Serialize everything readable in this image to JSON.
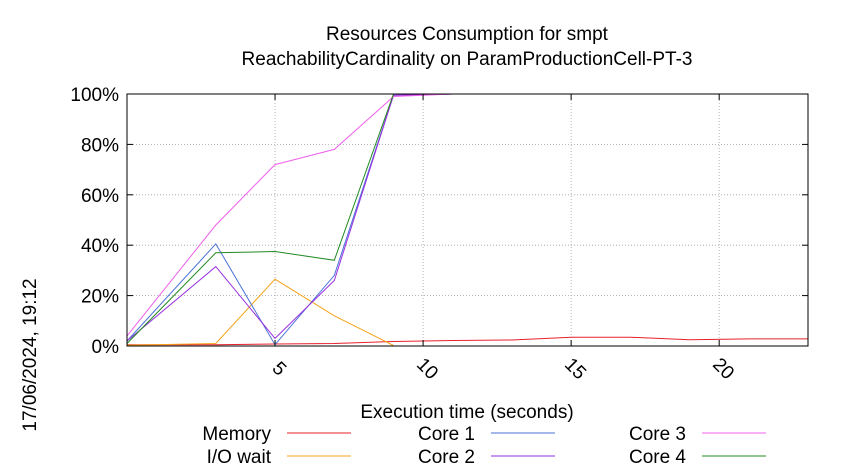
{
  "chart_data": {
    "type": "line",
    "title_line1": "Resources Consumption for smpt",
    "title_line2": "ReachabilityCardinality on ParamProductionCell-PT-3",
    "xlabel": "Execution time (seconds)",
    "ylabel": "",
    "side_label": "17/06/2024, 19:12",
    "xlim": [
      0,
      23
    ],
    "ylim": [
      0,
      100
    ],
    "x_ticks": [
      5,
      10,
      15,
      20
    ],
    "y_ticks": [
      0,
      20,
      40,
      60,
      80,
      100
    ],
    "y_tick_suffix": "%",
    "grid": true,
    "legend_placement": "bottom",
    "series": [
      {
        "name": "Memory",
        "color": "#e8202a",
        "x": [
          0,
          3,
          5,
          7,
          9,
          11,
          13,
          15,
          17,
          19,
          21,
          23
        ],
        "y": [
          0.5,
          0.5,
          0.8,
          1.0,
          1.8,
          2.2,
          2.4,
          3.5,
          3.5,
          2.5,
          2.8,
          2.8
        ]
      },
      {
        "name": "I/O wait",
        "color": "#f4a41c",
        "x": [
          0,
          3,
          5,
          7,
          9
        ],
        "y": [
          0.3,
          1.0,
          26.5,
          12.0,
          0.2
        ]
      },
      {
        "name": "Core 1",
        "color": "#4a72d8",
        "x": [
          0,
          3,
          5,
          7,
          9,
          11,
          13,
          15,
          17,
          19,
          21,
          23
        ],
        "y": [
          2.0,
          40.5,
          0.5,
          28.0,
          99.5,
          100,
          100,
          100,
          100,
          100,
          100,
          100
        ]
      },
      {
        "name": "Core 2",
        "color": "#9a2ee0",
        "x": [
          0,
          3,
          5,
          7,
          9,
          11,
          13,
          15,
          17,
          19,
          21,
          23
        ],
        "y": [
          2.0,
          31.5,
          3.0,
          26.0,
          99.5,
          100,
          100,
          100,
          100,
          100,
          100,
          100
        ]
      },
      {
        "name": "Core 3",
        "color": "#f060ef",
        "x": [
          0,
          3,
          5,
          7,
          9,
          11,
          13,
          15,
          17,
          19,
          21,
          23
        ],
        "y": [
          4.0,
          48.0,
          72.0,
          78.0,
          99.0,
          100,
          100,
          100,
          100,
          100,
          100,
          100
        ]
      },
      {
        "name": "Core 4",
        "color": "#218a21",
        "x": [
          0,
          3,
          5,
          7,
          9,
          11,
          13,
          15,
          17,
          19,
          21,
          23
        ],
        "y": [
          1.0,
          37.0,
          37.5,
          34.0,
          100,
          100,
          100,
          100,
          100,
          100,
          100,
          100
        ]
      }
    ]
  }
}
